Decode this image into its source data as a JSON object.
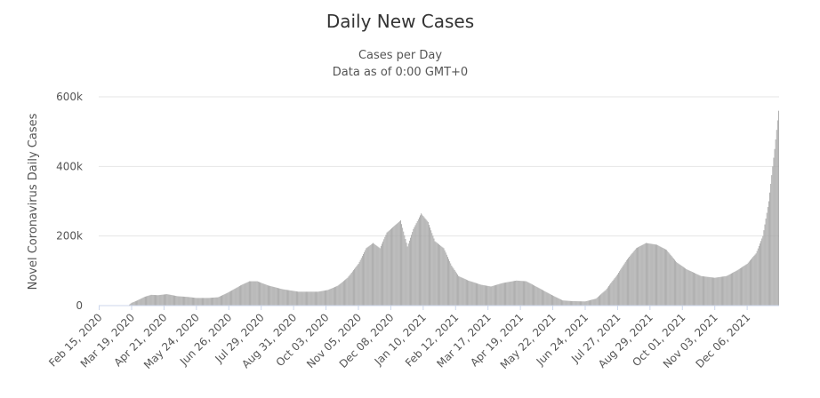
{
  "chart_data": {
    "type": "bar",
    "title": "Daily New Cases",
    "subtitle": "Cases per Day",
    "subtitle2": "Data as of 0:00 GMT+0",
    "ylabel": "Novel Coronavirus Daily Cases",
    "xlabel": "",
    "ylim": [
      0,
      600000
    ],
    "yticks": [
      {
        "value": 0,
        "label": "0"
      },
      {
        "value": 200000,
        "label": "200k"
      },
      {
        "value": 400000,
        "label": "400k"
      },
      {
        "value": 600000,
        "label": "600k"
      }
    ],
    "x_start": "2020-02-15",
    "x_end": "2022-01-07",
    "xticks": [
      "Feb 15, 2020",
      "Mar 19, 2020",
      "Apr 21, 2020",
      "May 24, 2020",
      "Jun 26, 2020",
      "Jul 29, 2020",
      "Aug 31, 2020",
      "Oct 03, 2020",
      "Nov 05, 2020",
      "Dec 08, 2020",
      "Jan 10, 2021",
      "Feb 12, 2021",
      "Mar 17, 2021",
      "Apr 19, 2021",
      "May 22, 2021",
      "Jun 24, 2021",
      "Jul 27, 2021",
      "Aug 29, 2021",
      "Oct 01, 2021",
      "Nov 03, 2021",
      "Dec 06, 2021"
    ],
    "grid": true,
    "legend": "none",
    "bar_color": "#a6a6a6",
    "series": [
      {
        "points": [
          [
            "2020-02-15",
            0
          ],
          [
            "2020-03-10",
            0
          ],
          [
            "2020-03-16",
            1000
          ],
          [
            "2020-03-19",
            8000
          ],
          [
            "2020-03-25",
            15000
          ],
          [
            "2020-04-01",
            25000
          ],
          [
            "2020-04-08",
            31000
          ],
          [
            "2020-04-15",
            30000
          ],
          [
            "2020-04-24",
            33000
          ],
          [
            "2020-05-05",
            27000
          ],
          [
            "2020-05-15",
            25000
          ],
          [
            "2020-05-24",
            22000
          ],
          [
            "2020-06-05",
            22000
          ],
          [
            "2020-06-15",
            24000
          ],
          [
            "2020-06-22",
            33000
          ],
          [
            "2020-06-30",
            45000
          ],
          [
            "2020-07-08",
            58000
          ],
          [
            "2020-07-17",
            70000
          ],
          [
            "2020-07-25",
            70000
          ],
          [
            "2020-08-05",
            58000
          ],
          [
            "2020-08-20",
            47000
          ],
          [
            "2020-09-05",
            40000
          ],
          [
            "2020-09-25",
            40000
          ],
          [
            "2020-10-05",
            45000
          ],
          [
            "2020-10-15",
            57000
          ],
          [
            "2020-10-25",
            80000
          ],
          [
            "2020-11-05",
            120000
          ],
          [
            "2020-11-13",
            165000
          ],
          [
            "2020-11-20",
            180000
          ],
          [
            "2020-11-27",
            165000
          ],
          [
            "2020-12-04",
            210000
          ],
          [
            "2020-12-12",
            230000
          ],
          [
            "2020-12-18",
            245000
          ],
          [
            "2020-12-25",
            170000
          ],
          [
            "2020-12-31",
            220000
          ],
          [
            "2021-01-08",
            265000
          ],
          [
            "2021-01-15",
            240000
          ],
          [
            "2021-01-22",
            185000
          ],
          [
            "2021-01-31",
            165000
          ],
          [
            "2021-02-08",
            115000
          ],
          [
            "2021-02-15",
            85000
          ],
          [
            "2021-02-25",
            72000
          ],
          [
            "2021-03-10",
            60000
          ],
          [
            "2021-03-20",
            55000
          ],
          [
            "2021-04-01",
            65000
          ],
          [
            "2021-04-15",
            72000
          ],
          [
            "2021-04-25",
            70000
          ],
          [
            "2021-05-05",
            55000
          ],
          [
            "2021-05-20",
            32000
          ],
          [
            "2021-06-01",
            15000
          ],
          [
            "2021-06-10",
            13000
          ],
          [
            "2021-06-24",
            12000
          ],
          [
            "2021-07-05",
            20000
          ],
          [
            "2021-07-15",
            45000
          ],
          [
            "2021-07-27",
            90000
          ],
          [
            "2021-08-05",
            130000
          ],
          [
            "2021-08-15",
            165000
          ],
          [
            "2021-08-25",
            180000
          ],
          [
            "2021-09-05",
            175000
          ],
          [
            "2021-09-15",
            160000
          ],
          [
            "2021-09-25",
            125000
          ],
          [
            "2021-10-05",
            105000
          ],
          [
            "2021-10-20",
            85000
          ],
          [
            "2021-11-03",
            80000
          ],
          [
            "2021-11-15",
            85000
          ],
          [
            "2021-11-25",
            100000
          ],
          [
            "2021-12-06",
            120000
          ],
          [
            "2021-12-15",
            150000
          ],
          [
            "2021-12-22",
            200000
          ],
          [
            "2021-12-28",
            300000
          ],
          [
            "2022-01-03",
            450000
          ],
          [
            "2022-01-07",
            560000
          ]
        ]
      }
    ]
  }
}
